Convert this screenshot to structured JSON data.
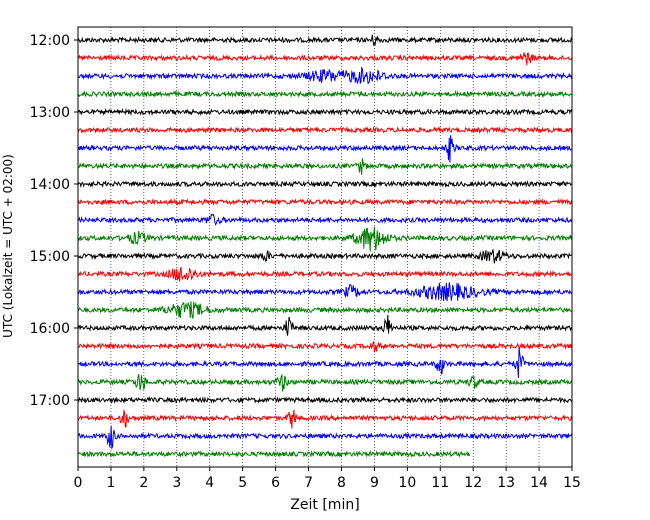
{
  "chart_data": {
    "type": "line",
    "title": "",
    "xlabel": "Zeit  [min]",
    "ylabel": "UTC (Lokalzeit = UTC + 02:00)",
    "xlim": [
      0,
      15
    ],
    "x_ticks": [
      "0",
      "1",
      "2",
      "3",
      "4",
      "5",
      "6",
      "7",
      "8",
      "9",
      "10",
      "11",
      "12",
      "13",
      "14",
      "15"
    ],
    "y_ticks": [
      "12:00",
      "13:00",
      "14:00",
      "15:00",
      "16:00",
      "17:00"
    ],
    "grid": "vertical dotted lines at each minute",
    "trace_minutes": 15,
    "row_colors": [
      "#000000",
      "#ff0000",
      "#0000ff",
      "#008000"
    ],
    "series": [
      {
        "start": "12:00",
        "end_min": 15,
        "color": "#000000",
        "events": [
          {
            "t": 9.0,
            "amp": 0.6,
            "dur": 0.2
          }
        ]
      },
      {
        "start": "12:15",
        "end_min": 15,
        "color": "#ff0000",
        "events": [
          {
            "t": 13.6,
            "amp": 0.8,
            "dur": 0.25
          }
        ]
      },
      {
        "start": "12:30",
        "end_min": 15,
        "color": "#0000ff",
        "events": [
          {
            "t": 7.5,
            "amp": 0.7,
            "dur": 0.8
          },
          {
            "t": 8.7,
            "amp": 0.9,
            "dur": 0.8
          }
        ]
      },
      {
        "start": "12:45",
        "end_min": 15,
        "color": "#008000",
        "events": []
      },
      {
        "start": "13:00",
        "end_min": 15,
        "color": "#000000",
        "events": []
      },
      {
        "start": "13:15",
        "end_min": 15,
        "color": "#ff0000",
        "events": []
      },
      {
        "start": "13:30",
        "end_min": 15,
        "color": "#0000ff",
        "events": [
          {
            "t": 11.3,
            "amp": 1.8,
            "dur": 0.15
          }
        ]
      },
      {
        "start": "13:45",
        "end_min": 15,
        "color": "#008000",
        "events": [
          {
            "t": 8.6,
            "amp": 1.0,
            "dur": 0.15
          }
        ]
      },
      {
        "start": "14:00",
        "end_min": 15,
        "color": "#000000",
        "events": []
      },
      {
        "start": "14:15",
        "end_min": 15,
        "color": "#ff0000",
        "events": []
      },
      {
        "start": "14:30",
        "end_min": 15,
        "color": "#0000ff",
        "events": [
          {
            "t": 4.1,
            "amp": 0.6,
            "dur": 0.3
          }
        ]
      },
      {
        "start": "14:45",
        "end_min": 15,
        "color": "#008000",
        "events": [
          {
            "t": 1.8,
            "amp": 0.7,
            "dur": 0.4
          },
          {
            "t": 8.9,
            "amp": 1.7,
            "dur": 0.6
          }
        ]
      },
      {
        "start": "15:00",
        "end_min": 15,
        "color": "#000000",
        "events": [
          {
            "t": 5.7,
            "amp": 0.6,
            "dur": 0.2
          },
          {
            "t": 12.6,
            "amp": 0.8,
            "dur": 0.5
          }
        ]
      },
      {
        "start": "15:15",
        "end_min": 15,
        "color": "#ff0000",
        "events": [
          {
            "t": 3.2,
            "amp": 1.1,
            "dur": 0.5
          }
        ]
      },
      {
        "start": "15:30",
        "end_min": 15,
        "color": "#0000ff",
        "events": [
          {
            "t": 8.3,
            "amp": 0.8,
            "dur": 0.3
          },
          {
            "t": 11.2,
            "amp": 1.1,
            "dur": 1.2
          }
        ]
      },
      {
        "start": "15:45",
        "end_min": 15,
        "color": "#008000",
        "events": [
          {
            "t": 3.3,
            "amp": 1.0,
            "dur": 0.8
          }
        ]
      },
      {
        "start": "16:00",
        "end_min": 15,
        "color": "#000000",
        "events": [
          {
            "t": 6.4,
            "amp": 1.5,
            "dur": 0.15
          },
          {
            "t": 9.4,
            "amp": 1.7,
            "dur": 0.15
          }
        ]
      },
      {
        "start": "16:15",
        "end_min": 15,
        "color": "#ff0000",
        "events": [
          {
            "t": 9.0,
            "amp": 0.6,
            "dur": 0.2
          }
        ]
      },
      {
        "start": "16:30",
        "end_min": 15,
        "color": "#0000ff",
        "events": [
          {
            "t": 11.0,
            "amp": 1.6,
            "dur": 0.15
          },
          {
            "t": 13.4,
            "amp": 2.2,
            "dur": 0.15
          }
        ]
      },
      {
        "start": "16:45",
        "end_min": 15,
        "color": "#008000",
        "events": [
          {
            "t": 1.9,
            "amp": 1.3,
            "dur": 0.2
          },
          {
            "t": 6.2,
            "amp": 1.1,
            "dur": 0.2
          },
          {
            "t": 12.0,
            "amp": 0.8,
            "dur": 0.2
          }
        ]
      },
      {
        "start": "17:00",
        "end_min": 15,
        "color": "#000000",
        "events": []
      },
      {
        "start": "17:15",
        "end_min": 15,
        "color": "#ff0000",
        "events": [
          {
            "t": 1.4,
            "amp": 1.4,
            "dur": 0.15
          },
          {
            "t": 6.5,
            "amp": 1.4,
            "dur": 0.15
          }
        ]
      },
      {
        "start": "17:30",
        "end_min": 15,
        "color": "#0000ff",
        "events": [
          {
            "t": 1.0,
            "amp": 1.8,
            "dur": 0.15
          }
        ]
      },
      {
        "start": "17:45",
        "end_min": 11.9,
        "color": "#008000",
        "events": []
      }
    ]
  }
}
